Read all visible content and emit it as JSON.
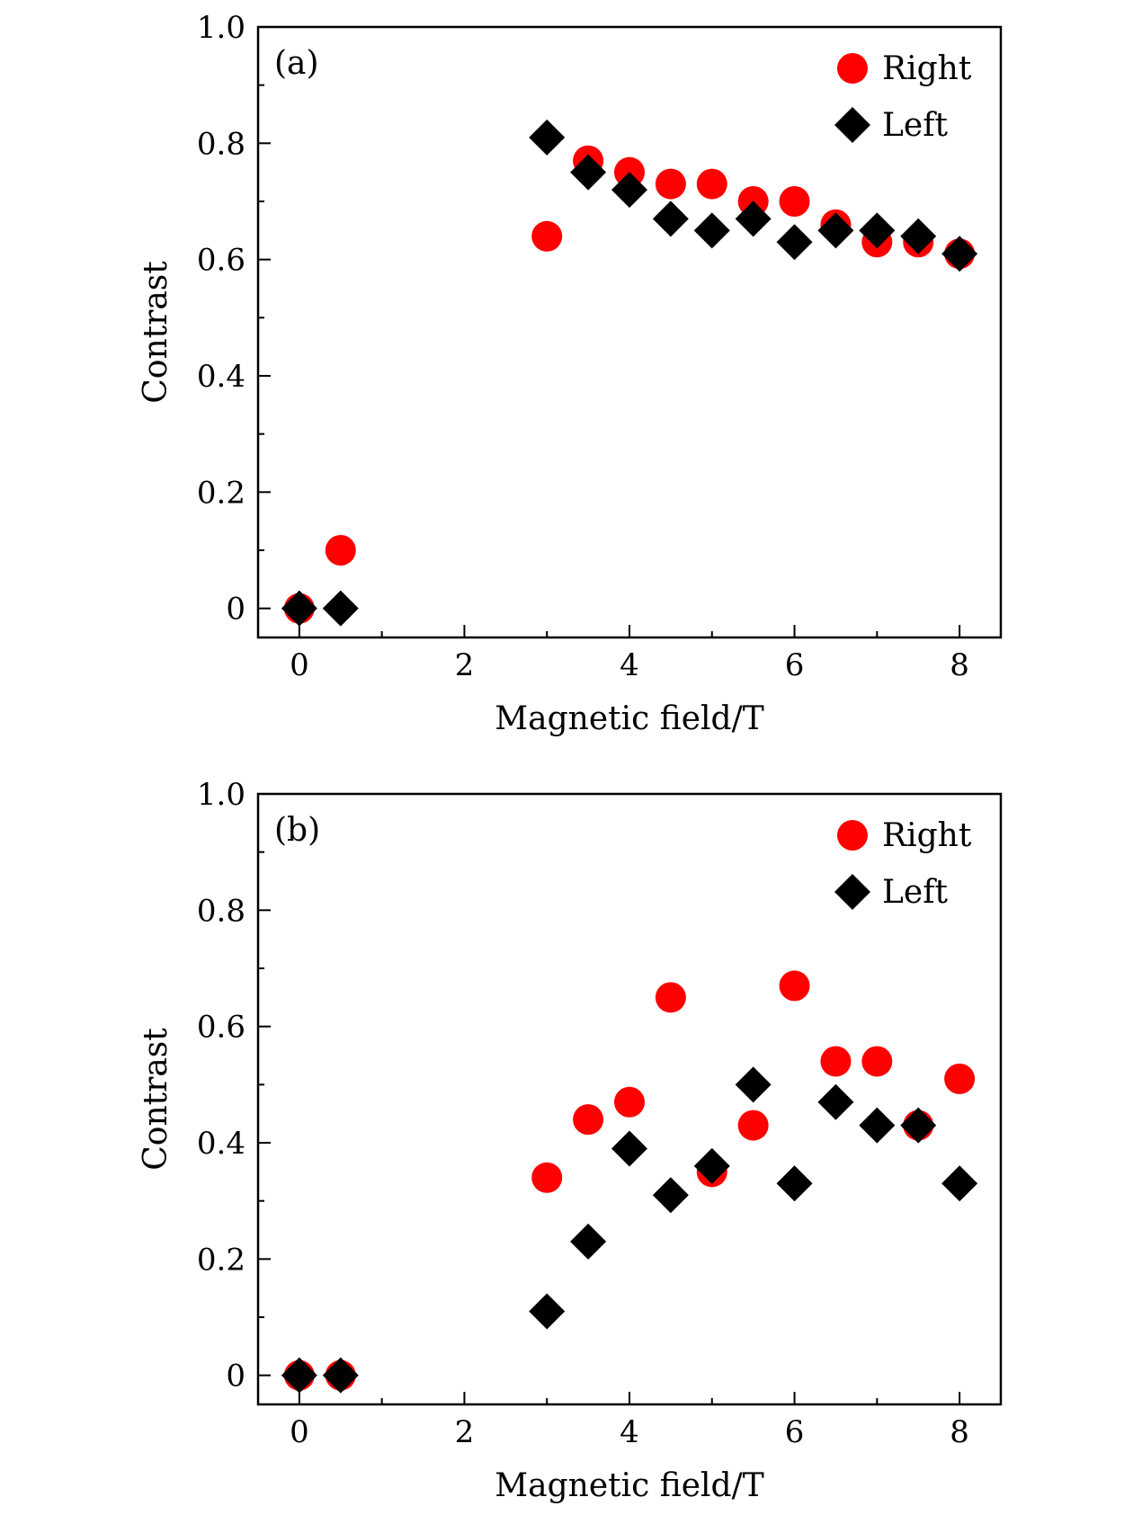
{
  "colors": {
    "right": "#ff0000",
    "left": "#000000",
    "axis": "#000000"
  },
  "chart_data": [
    {
      "type": "scatter",
      "panel_label": "(a)",
      "xlabel": "Magnetic field/T",
      "ylabel": "Contrast",
      "xlim": [
        -0.5,
        8.5
      ],
      "ylim": [
        -0.05,
        1.0
      ],
      "x_ticks": [
        0,
        2,
        4,
        6,
        8
      ],
      "x_tick_labels": [
        "0",
        "2",
        "4",
        "6",
        "8"
      ],
      "y_ticks": [
        0,
        0.2,
        0.4,
        0.6,
        0.8,
        1.0
      ],
      "y_tick_labels": [
        "0",
        "0.2",
        "0.4",
        "0.6",
        "0.8",
        "1.0"
      ],
      "legend_position": "top-right",
      "series": [
        {
          "name": "Right",
          "marker": "circle",
          "color": "#ff0000",
          "x": [
            0,
            0.5,
            3,
            3.5,
            4,
            4.5,
            5,
            5.5,
            6,
            6.5,
            7,
            7.5,
            8
          ],
          "y": [
            0.0,
            0.1,
            0.64,
            0.77,
            0.75,
            0.73,
            0.73,
            0.7,
            0.7,
            0.66,
            0.63,
            0.63,
            0.61
          ]
        },
        {
          "name": "Left",
          "marker": "diamond",
          "color": "#000000",
          "x": [
            0,
            0.5,
            3,
            3.5,
            4,
            4.5,
            5,
            5.5,
            6,
            6.5,
            7,
            7.5,
            8
          ],
          "y": [
            0.0,
            0.0,
            0.81,
            0.75,
            0.72,
            0.67,
            0.65,
            0.67,
            0.63,
            0.65,
            0.65,
            0.64,
            0.61
          ]
        }
      ]
    },
    {
      "type": "scatter",
      "panel_label": "(b)",
      "xlabel": "Magnetic field/T",
      "ylabel": "Contrast",
      "xlim": [
        -0.5,
        8.5
      ],
      "ylim": [
        -0.05,
        1.0
      ],
      "x_ticks": [
        0,
        2,
        4,
        6,
        8
      ],
      "x_tick_labels": [
        "0",
        "2",
        "4",
        "6",
        "8"
      ],
      "y_ticks": [
        0,
        0.2,
        0.4,
        0.6,
        0.8,
        1.0
      ],
      "y_tick_labels": [
        "0",
        "0.2",
        "0.4",
        "0.6",
        "0.8",
        "1.0"
      ],
      "legend_position": "top-right",
      "series": [
        {
          "name": "Right",
          "marker": "circle",
          "color": "#ff0000",
          "x": [
            0,
            0.5,
            3,
            3.5,
            4,
            4.5,
            5,
            5.5,
            6,
            6.5,
            7,
            7.5,
            8
          ],
          "y": [
            0.0,
            0.0,
            0.34,
            0.44,
            0.47,
            0.65,
            0.35,
            0.43,
            0.67,
            0.54,
            0.54,
            0.43,
            0.51
          ]
        },
        {
          "name": "Left",
          "marker": "diamond",
          "color": "#000000",
          "x": [
            0,
            0.5,
            3,
            3.5,
            4,
            4.5,
            5,
            5.5,
            6,
            6.5,
            7,
            7.5,
            8
          ],
          "y": [
            0.0,
            0.0,
            0.11,
            0.23,
            0.39,
            0.31,
            0.36,
            0.5,
            0.33,
            0.47,
            0.43,
            0.43,
            0.33
          ]
        }
      ]
    }
  ]
}
